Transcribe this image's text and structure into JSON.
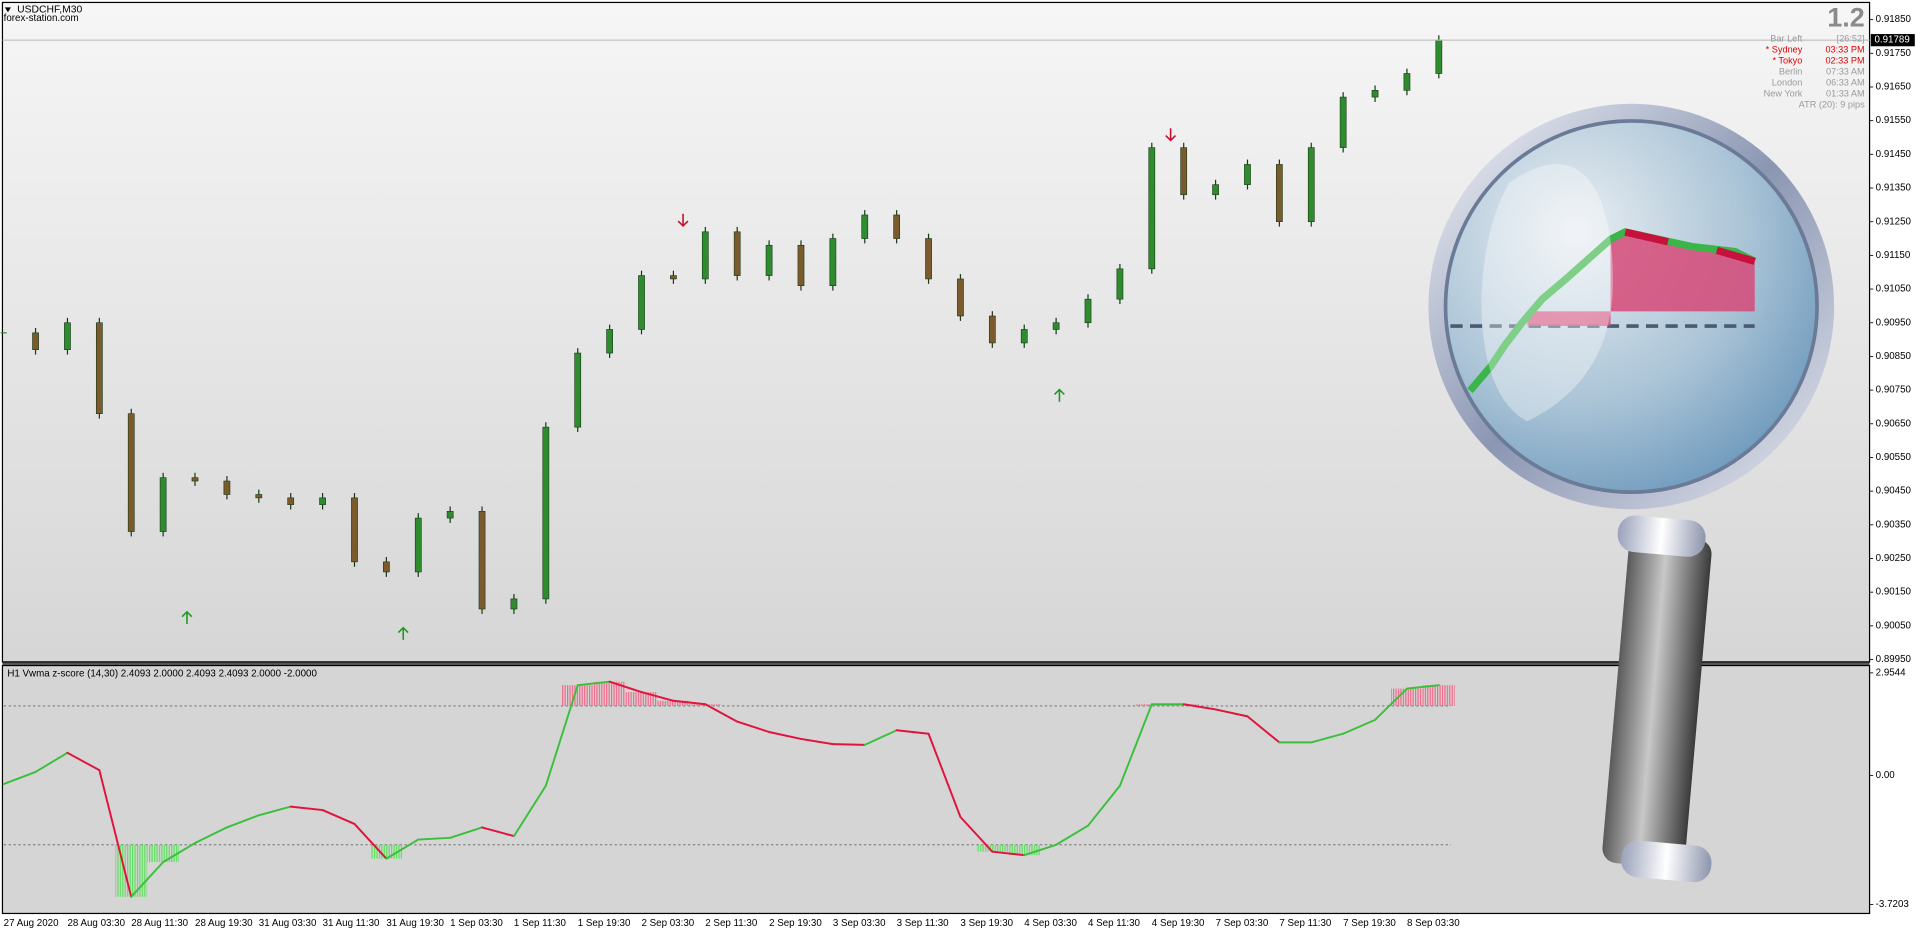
{
  "info_panel": {
    "version": "1.2",
    "rows": [
      {
        "label": "Bar Left",
        "value": "[26:52]"
      },
      {
        "label": "* Sydney",
        "value": "03:33 PM"
      },
      {
        "label": "* Tokyo",
        "value": "02:33 PM"
      },
      {
        "label": "Berlin",
        "value": "07:33 AM"
      },
      {
        "label": "London",
        "value": "06:33 AM"
      },
      {
        "label": "New York",
        "value": "01:33 AM"
      }
    ],
    "atr": "ATR (20): 9 pips"
  },
  "chart_data": [
    {
      "type": "candlestick",
      "title": "USDCHF,M30",
      "subtitle": "forex-station.com",
      "categories": [
        "27 Aug 2020",
        null,
        "28 Aug 03:30",
        null,
        "28 Aug 11:30",
        null,
        "28 Aug 19:30",
        null,
        "31 Aug 03:30",
        null,
        "31 Aug 11:30",
        null,
        "31 Aug 19:30",
        null,
        "1 Sep 03:30",
        null,
        "1 Sep 11:30",
        null,
        "1 Sep 19:30",
        null,
        "2 Sep 03:30",
        null,
        "2 Sep 11:30",
        null,
        "2 Sep 19:30",
        null,
        "3 Sep 03:30",
        null,
        "3 Sep 11:30",
        null,
        "3 Sep 19:30",
        null,
        "4 Sep 03:30",
        null,
        "4 Sep 11:30",
        null,
        "4 Sep 19:30",
        null,
        "7 Sep 03:30",
        null,
        "7 Sep 11:30",
        null,
        "7 Sep 19:30",
        null,
        "8 Sep 03:30",
        null
      ],
      "values": [
        0.9092,
        0.9087,
        0.9095,
        0.9068,
        0.9033,
        0.9049,
        0.9048,
        0.9044,
        0.9043,
        0.9041,
        0.9043,
        0.9024,
        0.9021,
        0.9037,
        0.9039,
        0.901,
        0.9013,
        0.9064,
        0.9086,
        0.9093,
        0.9109,
        0.9108,
        0.9122,
        0.9109,
        0.9118,
        0.9106,
        0.912,
        0.9127,
        0.912,
        0.9108,
        0.9097,
        0.9089,
        0.9093,
        0.9095,
        0.9102,
        0.9111,
        0.9147,
        0.9133,
        0.9136,
        0.9142,
        0.9125,
        0.9147,
        0.9162,
        0.9164,
        0.9169,
        0.91789
      ],
      "colors": {
        "up": "#2e8b2e",
        "down": "#7b5b2b"
      },
      "current_price": 0.91789,
      "ylim": [
        0.89943,
        0.91901
      ],
      "yticks": [
        {
          "value": 0.9185,
          "label": "0.91850"
        },
        {
          "value": 0.9175,
          "label": "0.91750"
        },
        {
          "value": 0.9165,
          "label": "0.91650"
        },
        {
          "value": 0.9155,
          "label": "0.91550"
        },
        {
          "value": 0.9145,
          "label": "0.91450"
        },
        {
          "value": 0.9135,
          "label": "0.91350"
        },
        {
          "value": 0.9125,
          "label": "0.91250"
        },
        {
          "value": 0.9115,
          "label": "0.91150"
        },
        {
          "value": 0.9105,
          "label": "0.91050"
        },
        {
          "value": 0.9095,
          "label": "0.90950"
        },
        {
          "value": 0.9085,
          "label": "0.90850"
        },
        {
          "value": 0.9075,
          "label": "0.90750"
        },
        {
          "value": 0.9065,
          "label": "0.90650"
        },
        {
          "value": 0.9055,
          "label": "0.90550"
        },
        {
          "value": 0.9045,
          "label": "0.90450"
        },
        {
          "value": 0.9035,
          "label": "0.90350"
        },
        {
          "value": 0.9025,
          "label": "0.90250"
        },
        {
          "value": 0.9015,
          "label": "0.90150"
        },
        {
          "value": 0.9005,
          "label": "0.90050"
        },
        {
          "value": 0.8995,
          "label": "0.89950"
        }
      ]
    },
    {
      "type": "line",
      "title": "H1 Vwma z-score (14,30) 2.4093 2.0000 2.4093 2.4093 2.0000 -2.0000",
      "values": [
        -0.25,
        0.1,
        0.65,
        0.15,
        -3.5,
        -2.5,
        -1.95,
        -1.5,
        -1.15,
        -0.9,
        -1.0,
        -1.4,
        -2.4,
        -1.85,
        -1.8,
        -1.5,
        -1.75,
        -0.3,
        2.6,
        2.7,
        2.4,
        2.15,
        2.05,
        1.55,
        1.25,
        1.05,
        0.9,
        0.88,
        1.3,
        1.2,
        -1.2,
        -2.2,
        -2.3,
        -2.0,
        -1.45,
        -0.3,
        2.05,
        2.05,
        1.9,
        1.7,
        0.95,
        0.95,
        1.2,
        1.6,
        2.5,
        2.6
      ],
      "levels": [
        2,
        -2
      ],
      "colors": {
        "up": "#3cbf3c",
        "down": "#e0143c",
        "upper_fill": "#f06a8a",
        "lower_fill": "#5ee05e"
      },
      "ylim": [
        -3.98,
        3.13
      ],
      "yticks": [
        2.9544,
        {
          "value": 0,
          "label": "0.00"
        },
        -3.7203
      ]
    }
  ]
}
